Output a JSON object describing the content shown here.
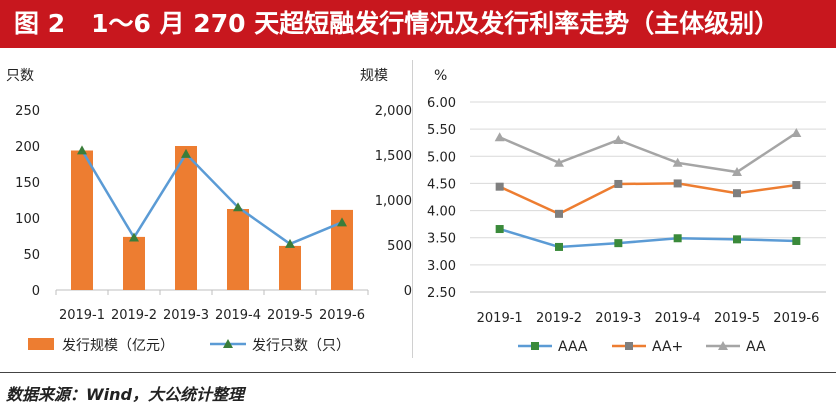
{
  "header": {
    "figure_no": "图 2",
    "title": "1～6 月 270 天超短融发行情况及发行利率走势（主体级别）"
  },
  "footer": {
    "source": "数据来源：Wind，大公统计整理"
  },
  "chart_data": [
    {
      "type": "bar",
      "categories": [
        "2019-1",
        "2019-2",
        "2019-3",
        "2019-4",
        "2019-5",
        "2019-6"
      ],
      "series": [
        {
          "name": "发行规模（亿元）",
          "type": "bar",
          "axis": "right",
          "values": [
            1550,
            590,
            1600,
            900,
            490,
            890
          ],
          "color": "#ed7d31"
        },
        {
          "name": "发行只数（只）",
          "type": "line",
          "axis": "left",
          "values": [
            194,
            73,
            189,
            115,
            64,
            94
          ],
          "color": "#5b9bd5",
          "marker_color": "#3a7d3a"
        }
      ],
      "ylabel": "只数",
      "ylim": [
        0,
        250
      ],
      "yticks": [
        0,
        50,
        100,
        150,
        200,
        250
      ],
      "ylabel_right": "规模",
      "ylim_right": [
        0,
        2000
      ],
      "yticks_right": [
        "0",
        "500",
        "1,000",
        "1,500",
        "2,000"
      ],
      "legend": "bottom",
      "grid": false
    },
    {
      "type": "line",
      "categories": [
        "2019-1",
        "2019-2",
        "2019-3",
        "2019-4",
        "2019-5",
        "2019-6"
      ],
      "series": [
        {
          "name": "AAA",
          "values": [
            3.66,
            3.33,
            3.4,
            3.49,
            3.47,
            3.44
          ],
          "color": "#5b9bd5",
          "marker_color": "#3a8a3a"
        },
        {
          "name": "AA+",
          "values": [
            4.44,
            3.94,
            4.49,
            4.5,
            4.32,
            4.47
          ],
          "color": "#ed7d31",
          "marker_color": "#7f7f7f"
        },
        {
          "name": "AA",
          "values": [
            5.35,
            4.88,
            5.3,
            4.88,
            4.71,
            5.43
          ],
          "color": "#a5a5a5",
          "marker_color": "#a5a5a5"
        }
      ],
      "ylabel": "%",
      "ylim": [
        2.5,
        6.0
      ],
      "yticks": [
        "2.50",
        "3.00",
        "3.50",
        "4.00",
        "4.50",
        "5.00",
        "5.50",
        "6.00"
      ],
      "legend": "bottom",
      "grid": true
    }
  ]
}
